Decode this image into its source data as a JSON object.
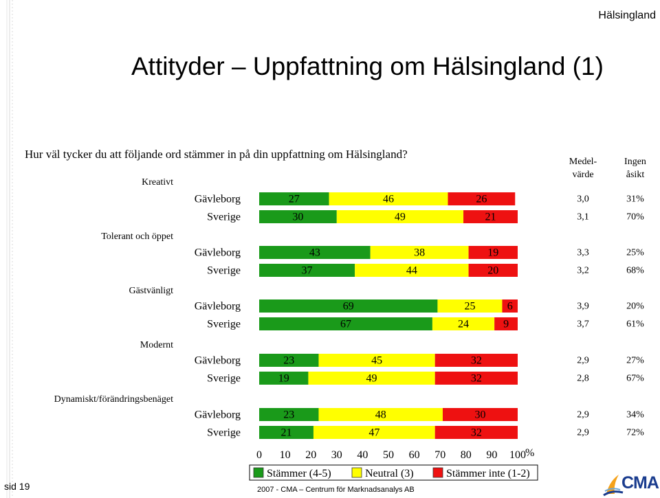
{
  "header": {
    "region": "Hälsingland",
    "title": "Attityder – Uppfattning om Hälsingland (1)",
    "question": "Hur väl tycker du att följande ord stämmer in på din uppfattning om Hälsingland?"
  },
  "columns": {
    "mean_line1": "Medel-",
    "mean_line2": "värde",
    "noopinion_line1": "Ingen",
    "noopinion_line2": "åsikt"
  },
  "footer": {
    "source": "2007  -  CMA – Centrum för Marknadsanalys AB",
    "page": "sid 19",
    "logo_text": "CMA"
  },
  "colors": {
    "agree": "#1a9a1a",
    "neutral": "#ffff00",
    "disagree": "#ee1111"
  },
  "chart_data": {
    "type": "bar",
    "orientation": "horizontal",
    "stacked": true,
    "xlim": [
      0,
      100
    ],
    "x_ticks": [
      0,
      10,
      20,
      30,
      40,
      50,
      60,
      70,
      80,
      90,
      100
    ],
    "x_unit": "%",
    "legend_position": "bottom",
    "series": [
      {
        "name": "Stämmer (4-5)",
        "color": "#1a9a1a"
      },
      {
        "name": "Neutral (3)",
        "color": "#ffff00"
      },
      {
        "name": "Stämmer inte (1-2)",
        "color": "#ee1111"
      }
    ],
    "groups": [
      {
        "label": "Kreativt",
        "rows": [
          {
            "label": "Gävleborg",
            "values": [
              27,
              46,
              26
            ],
            "mean": "3,0",
            "no_opinion": "31%"
          },
          {
            "label": "Sverige",
            "values": [
              30,
              49,
              21
            ],
            "mean": "3,1",
            "no_opinion": "70%"
          }
        ]
      },
      {
        "label": "Tolerant och öppet",
        "rows": [
          {
            "label": "Gävleborg",
            "values": [
              43,
              38,
              19
            ],
            "mean": "3,3",
            "no_opinion": "25%"
          },
          {
            "label": "Sverige",
            "values": [
              37,
              44,
              20
            ],
            "mean": "3,2",
            "no_opinion": "68%"
          }
        ]
      },
      {
        "label": "Gästvänligt",
        "rows": [
          {
            "label": "Gävleborg",
            "values": [
              69,
              25,
              6
            ],
            "mean": "3,9",
            "no_opinion": "20%"
          },
          {
            "label": "Sverige",
            "values": [
              67,
              24,
              9
            ],
            "mean": "3,7",
            "no_opinion": "61%"
          }
        ]
      },
      {
        "label": "Modernt",
        "rows": [
          {
            "label": "Gävleborg",
            "values": [
              23,
              45,
              32
            ],
            "mean": "2,9",
            "no_opinion": "27%"
          },
          {
            "label": "Sverige",
            "values": [
              19,
              49,
              32
            ],
            "mean": "2,8",
            "no_opinion": "67%"
          }
        ]
      },
      {
        "label": "Dynamiskt/förändringsbenäget",
        "rows": [
          {
            "label": "Gävleborg",
            "values": [
              23,
              48,
              30
            ],
            "mean": "2,9",
            "no_opinion": "34%"
          },
          {
            "label": "Sverige",
            "values": [
              21,
              47,
              32
            ],
            "mean": "2,9",
            "no_opinion": "72%"
          }
        ]
      }
    ]
  }
}
